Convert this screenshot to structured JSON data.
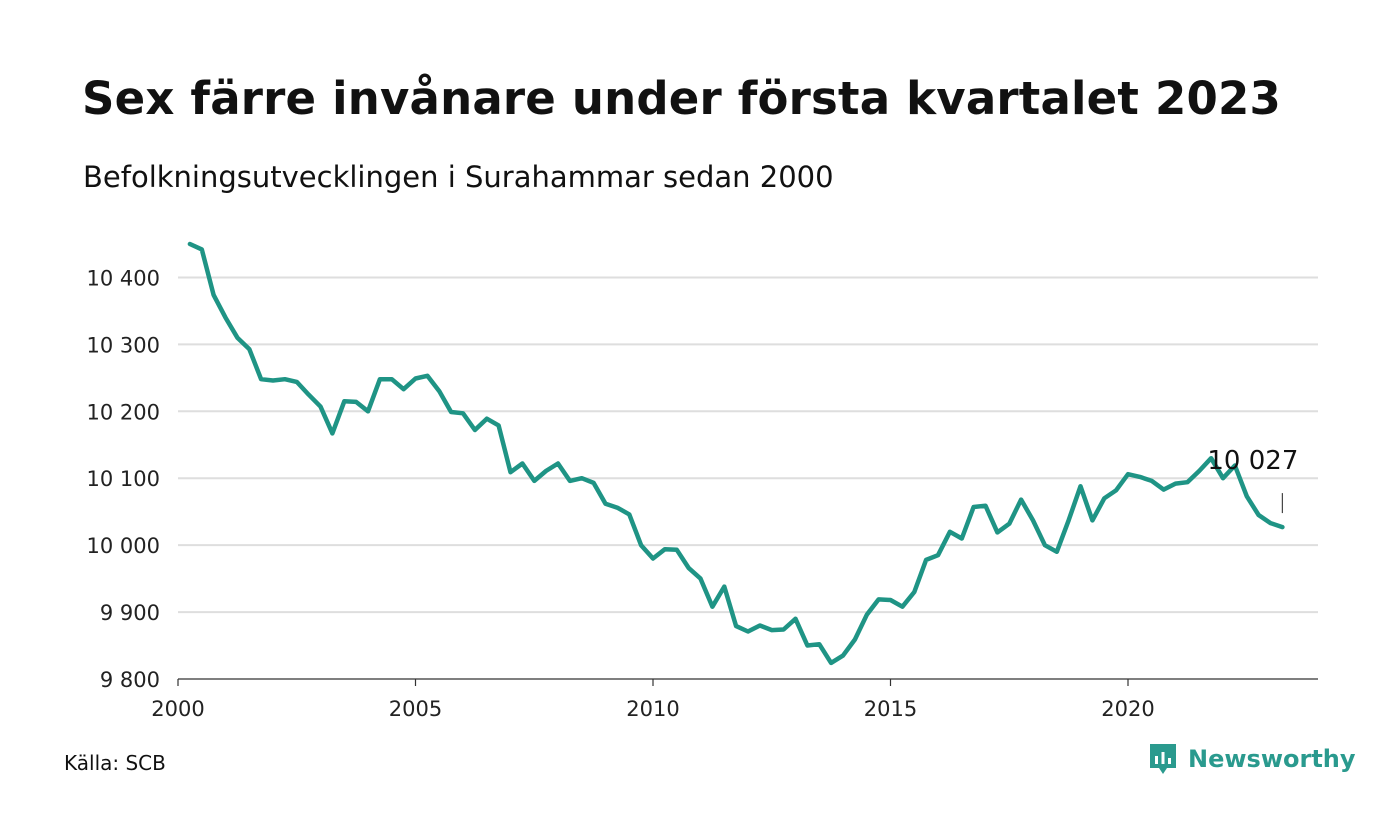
{
  "title": "Sex färre invånare under första kvartalet 2023",
  "subtitle": "Befolkningsutvecklingen i Surahammar sedan 2000",
  "source": "Källa: SCB",
  "brand": {
    "name": "Newsworthy",
    "icon": "newsworthy-logo-icon",
    "color": "#2a9a8e"
  },
  "chart_data": {
    "type": "line",
    "ylim": [
      9800,
      10450
    ],
    "xlim": [
      2000,
      2023.75
    ],
    "yticks": [
      9800,
      9900,
      10000,
      10100,
      10200,
      10300,
      10400
    ],
    "ytick_labels": [
      "9 800",
      "9 900",
      "10 000",
      "10 100",
      "10 200",
      "10 300",
      "10 400"
    ],
    "xticks": [
      2000,
      2005,
      2010,
      2015,
      2020
    ],
    "xtick_labels": [
      "2000",
      "2005",
      "2010",
      "2015",
      "2020"
    ],
    "grid": true,
    "line_color": "#1f9485",
    "last_label": "10 027",
    "series": [
      {
        "x": [
          2000.25,
          2000.5,
          2000.75,
          2001.0,
          2001.25,
          2001.5,
          2001.75,
          2002.0,
          2002.25,
          2002.5,
          2002.75,
          2003.0,
          2003.25,
          2003.5,
          2003.75,
          2004.0,
          2004.25,
          2004.5,
          2004.75,
          2005.0,
          2005.25,
          2005.5,
          2005.75,
          2006.0,
          2006.25,
          2006.5,
          2006.75,
          2007.0,
          2007.25,
          2007.5,
          2007.75,
          2008.0,
          2008.25,
          2008.5,
          2008.75,
          2009.0,
          2009.25,
          2009.5,
          2009.75,
          2010.0,
          2010.25,
          2010.5,
          2010.75,
          2011.0,
          2011.25,
          2011.5,
          2011.75,
          2012.0,
          2012.25,
          2012.5,
          2012.75,
          2013.0,
          2013.25,
          2013.5,
          2013.75,
          2014.0,
          2014.25,
          2014.5,
          2014.75,
          2015.0,
          2015.25,
          2015.5,
          2015.75,
          2016.0,
          2016.25,
          2016.5,
          2016.75,
          2017.0,
          2017.25,
          2017.5,
          2017.75,
          2018.0,
          2018.25,
          2018.5,
          2018.75,
          2019.0,
          2019.25,
          2019.5,
          2019.75,
          2020.0,
          2020.25,
          2020.5,
          2020.75,
          2021.0,
          2021.25,
          2021.5,
          2021.75,
          2022.0,
          2022.25,
          2022.5,
          2022.75,
          2023.0,
          2023.25
        ],
        "values": [
          10450,
          10442,
          10374,
          10340,
          10310,
          10293,
          10248,
          10246,
          10248,
          10244,
          10225,
          10207,
          10167,
          10215,
          10214,
          10200,
          10248,
          10248,
          10233,
          10249,
          10253,
          10230,
          10199,
          10197,
          10172,
          10189,
          10179,
          10109,
          10122,
          10096,
          10111,
          10122,
          10096,
          10100,
          10093,
          10062,
          10056,
          10046,
          10000,
          9980,
          9994,
          9993,
          9966,
          9950,
          9908,
          9938,
          9879,
          9871,
          9880,
          9873,
          9874,
          9890,
          9850,
          9852,
          9824,
          9835,
          9859,
          9896,
          9919,
          9918,
          9908,
          9930,
          9978,
          9985,
          10020,
          10010,
          10057,
          10059,
          10019,
          10032,
          10068,
          10037,
          10000,
          9990,
          10037,
          10088,
          10037,
          10070,
          10082,
          10106,
          10102,
          10096,
          10083,
          10092,
          10094,
          10111,
          10130,
          10100,
          10119,
          10073,
          10045,
          10033,
          10027
        ]
      }
    ]
  }
}
